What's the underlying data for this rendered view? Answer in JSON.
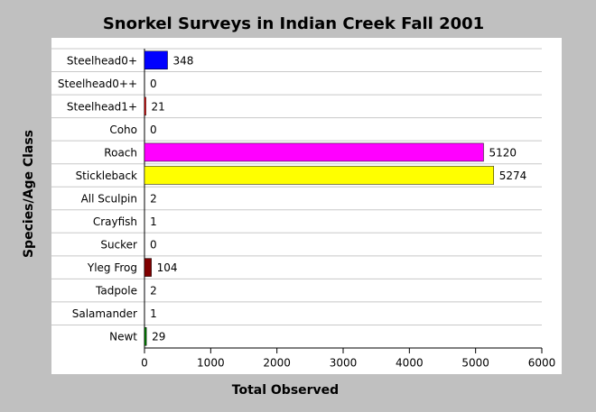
{
  "chart_data": {
    "type": "hbar",
    "title": "Snorkel Surveys in Indian Creek Fall 2001",
    "x_label": "Total Observed",
    "y_label": "Species/Age Class",
    "categories": [
      "Steelhead0+",
      "Steelhead0++",
      "Steelhead1+",
      "Coho",
      "Roach",
      "Stickleback",
      "All Sculpin",
      "Crayfish",
      "Sucker",
      "Yleg Frog",
      "Tadpole",
      "Salamander",
      "Newt"
    ],
    "values": [
      348,
      0,
      21,
      0,
      5120,
      5274,
      2,
      1,
      0,
      104,
      2,
      1,
      29
    ],
    "colors": [
      "#0000ff",
      "#00ff00",
      "#ff0000",
      "#00ffff",
      "#ff00ff",
      "#ffff00",
      "#000000",
      "#808000",
      "#008080",
      "#800000",
      "#000080",
      "#808080",
      "#008000"
    ],
    "xlim": [
      0,
      6000
    ],
    "xticks": [
      0,
      1000,
      2000,
      3000,
      4000,
      5000,
      6000
    ],
    "grid": true
  }
}
